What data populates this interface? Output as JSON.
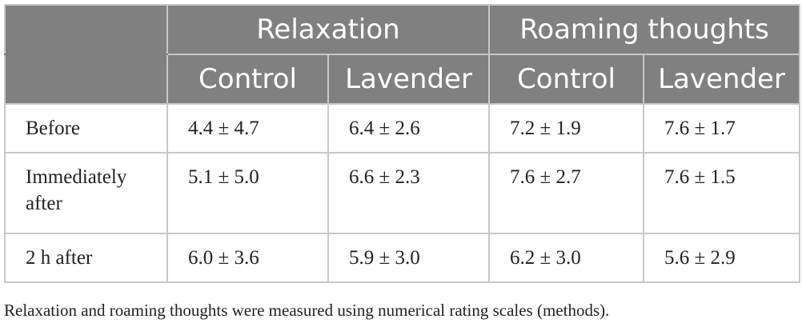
{
  "table": {
    "group_headers": [
      "",
      "Relaxation",
      "Roaming thoughts"
    ],
    "sub_headers": [
      "Control",
      "Lavender",
      "Control",
      "Lavender"
    ],
    "rows": [
      {
        "label": "Before",
        "values": [
          "4.4 ± 4.7",
          "6.4 ± 2.6",
          "7.2 ± 1.9",
          "7.6 ± 1.7"
        ]
      },
      {
        "label": "Immediately after",
        "values": [
          "5.1 ± 5.0",
          "6.6 ± 2.3",
          "7.6 ± 2.7",
          "7.6 ± 1.5"
        ]
      },
      {
        "label": "2 h after",
        "values": [
          "6.0 ± 3.6",
          "5.9 ± 3.0",
          "6.2 ± 3.0",
          "5.6 ± 2.9"
        ]
      }
    ]
  },
  "footnote": "Relaxation and roaming thoughts were measured using numerical rating scales (methods).",
  "colors": {
    "header_bg": "#808080",
    "header_text": "#ffffff",
    "grid": "#c8c8c8",
    "body_text": "#222222"
  }
}
